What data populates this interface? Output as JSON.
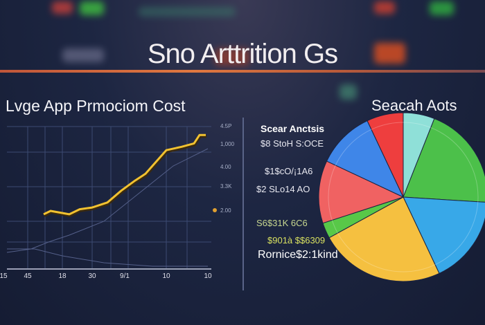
{
  "title": "Sno Arttrition Gs",
  "left_heading": "Lvge  App Prmociom Cost",
  "right_heading": "Seacah Aots",
  "legend": {
    "title": "Scear Anctsis",
    "items": [
      "$8 StoH S:OCE",
      "$1$cO/¡1A6",
      "$2 SLo14 AO",
      "S6$31K 6C6",
      "$901à $$6309",
      "Rornice$2:1kind"
    ]
  },
  "chart_data": [
    {
      "type": "line",
      "title": "Lvge  App Prmociom Cost",
      "x_tick_labels": [
        "15",
        "45",
        "18",
        "30",
        "9/1",
        "10",
        "10"
      ],
      "y_tick_labels": [
        "4.5P",
        "1,000",
        "4.00",
        "3.3K",
        "2.00"
      ],
      "grid": true,
      "series": [
        {
          "color": "#f2c230",
          "values": [
            1.9,
            2.0,
            1.9,
            2.05,
            2.1,
            2.25,
            2.6,
            2.9,
            3.1,
            3.8,
            3.9,
            4.0,
            4.25,
            4.25
          ]
        }
      ]
    },
    {
      "type": "pie",
      "title": "Seacah Aots",
      "slices": [
        {
          "color": "#8fe0d8",
          "value": 6
        },
        {
          "color": "#4cc04a",
          "value": 20
        },
        {
          "color": "#38a8e8",
          "value": 17
        },
        {
          "color": "#f5c040",
          "value": 24
        },
        {
          "color": "#58c848",
          "value": 3
        },
        {
          "color": "#f06262",
          "value": 12
        },
        {
          "color": "#3f86e8",
          "value": 11
        },
        {
          "color": "#ee3e3e",
          "value": 7
        }
      ]
    }
  ]
}
